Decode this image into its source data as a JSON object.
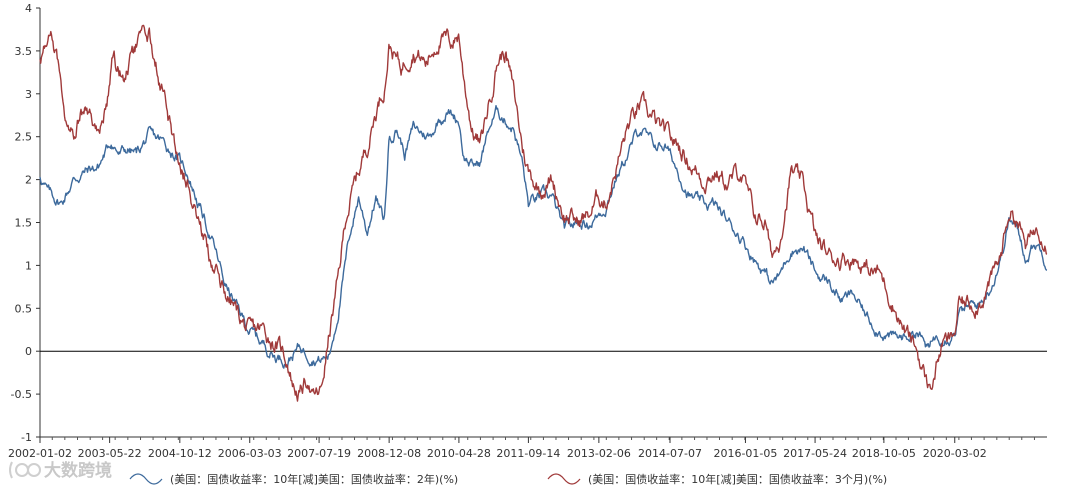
{
  "watermark": "大数跨境",
  "chart_data": {
    "type": "line",
    "title": "",
    "xlabel": "",
    "ylabel": "",
    "ylim": [
      -1,
      4
    ],
    "yticks": [
      -1,
      -0.5,
      0,
      0.5,
      1,
      1.5,
      2,
      2.5,
      3,
      3.5,
      4
    ],
    "ytick_labels": [
      "-1",
      "-0.5",
      "0",
      "0.5",
      "1",
      "1.5",
      "2",
      "2.5",
      "3",
      "3.5",
      "4"
    ],
    "xlim": [
      "2002-01-02",
      "2021-12-31"
    ],
    "xtick_labels": [
      "2002-01-02",
      "2003-05-22",
      "2004-10-12",
      "2006-03-03",
      "2007-07-19",
      "2008-12-08",
      "2010-04-28",
      "2011-09-14",
      "2013-02-06",
      "2014-07-07",
      "2016-01-05",
      "2017-05-24",
      "2018-10-05",
      "2020-03-02"
    ],
    "zero_line": true,
    "grid": false,
    "legend_position": "bottom",
    "series": [
      {
        "name": "(美国：国债收益率：10年[减]美国：国债收益率：2年)(%)",
        "color": "#3d6a9c",
        "x": [
          "2002-01-02",
          "2002-03-01",
          "2002-06-03",
          "2002-09-03",
          "2002-12-02",
          "2003-03-03",
          "2003-06-02",
          "2003-08-01",
          "2003-10-01",
          "2003-12-01",
          "2004-03-01",
          "2004-06-01",
          "2004-09-01",
          "2004-12-01",
          "2005-03-01",
          "2005-06-01",
          "2005-09-01",
          "2005-12-01",
          "2006-03-01",
          "2006-06-01",
          "2006-09-01",
          "2006-12-01",
          "2007-03-01",
          "2007-06-01",
          "2007-08-01",
          "2007-10-01",
          "2007-12-03",
          "2008-03-03",
          "2008-05-01",
          "2008-07-01",
          "2008-09-02",
          "2008-11-03",
          "2008-12-08",
          "2009-02-02",
          "2009-04-01",
          "2009-06-01",
          "2009-08-03",
          "2009-10-01",
          "2009-12-01",
          "2010-02-01",
          "2010-04-28",
          "2010-06-01",
          "2010-08-02",
          "2010-10-01",
          "2010-12-01",
          "2011-02-01",
          "2011-04-01",
          "2011-06-01",
          "2011-08-01",
          "2011-09-14",
          "2011-12-01",
          "2012-03-01",
          "2012-06-01",
          "2012-09-04",
          "2012-12-03",
          "2013-02-06",
          "2013-04-01",
          "2013-06-03",
          "2013-09-03",
          "2013-12-02",
          "2014-03-03",
          "2014-06-02",
          "2014-09-02",
          "2014-12-01",
          "2015-03-02",
          "2015-06-01",
          "2015-09-01",
          "2015-12-01",
          "2016-03-01",
          "2016-06-01",
          "2016-07-08",
          "2016-09-01",
          "2016-12-01",
          "2017-03-01",
          "2017-06-01",
          "2017-09-01",
          "2017-12-01",
          "2018-03-01",
          "2018-06-01",
          "2018-09-04",
          "2018-12-03",
          "2019-03-01",
          "2019-06-03",
          "2019-08-28",
          "2019-10-01",
          "2019-12-02",
          "2020-02-03",
          "2020-03-02",
          "2020-04-01",
          "2020-06-01",
          "2020-09-01",
          "2020-12-01",
          "2021-02-01",
          "2021-03-31",
          "2021-06-01",
          "2021-08-02",
          "2021-10-01",
          "2021-11-15",
          "2021-12-31"
        ],
        "values": [
          2.05,
          1.85,
          1.72,
          2.0,
          2.1,
          2.15,
          2.45,
          2.3,
          2.35,
          2.3,
          2.5,
          2.45,
          2.3,
          2.1,
          1.7,
          1.3,
          0.8,
          0.5,
          0.25,
          0.1,
          -0.05,
          -0.1,
          0.05,
          -0.05,
          -0.1,
          -0.05,
          0.45,
          1.4,
          1.8,
          1.4,
          1.8,
          1.5,
          2.5,
          2.6,
          2.3,
          2.6,
          2.55,
          2.5,
          2.7,
          2.8,
          2.7,
          2.3,
          2.15,
          2.2,
          2.6,
          2.8,
          2.7,
          2.6,
          2.2,
          1.7,
          1.8,
          1.8,
          1.4,
          1.5,
          1.5,
          1.6,
          1.7,
          2.0,
          2.3,
          2.6,
          2.4,
          2.4,
          2.1,
          1.8,
          1.7,
          1.7,
          1.5,
          1.35,
          1.1,
          0.9,
          0.8,
          0.85,
          1.2,
          1.2,
          0.9,
          0.8,
          0.6,
          0.65,
          0.4,
          0.25,
          0.15,
          0.15,
          0.25,
          0.0,
          0.15,
          0.2,
          0.2,
          0.25,
          0.45,
          0.5,
          0.55,
          0.8,
          1.1,
          1.55,
          1.4,
          1.1,
          1.25,
          1.2,
          1.05
        ]
      },
      {
        "name": "(美国：国债收益率：10年[减]美国：国债收益率：3个月)(%)",
        "color": "#a03a3a",
        "x": [
          "2002-01-02",
          "2002-02-01",
          "2002-04-01",
          "2002-06-03",
          "2002-07-01",
          "2002-09-03",
          "2002-11-01",
          "2003-01-02",
          "2003-03-03",
          "2003-05-01",
          "2003-06-16",
          "2003-07-15",
          "2003-09-02",
          "2003-11-03",
          "2004-01-02",
          "2004-03-01",
          "2004-06-01",
          "2004-09-01",
          "2004-12-01",
          "2005-03-01",
          "2005-06-01",
          "2005-09-01",
          "2005-12-01",
          "2006-03-01",
          "2006-06-01",
          "2006-09-01",
          "2006-12-01",
          "2007-01-16",
          "2007-03-01",
          "2007-05-01",
          "2007-06-01",
          "2007-08-01",
          "2007-10-01",
          "2007-12-03",
          "2008-02-01",
          "2008-05-01",
          "2008-07-01",
          "2008-09-02",
          "2008-11-03",
          "2008-12-08",
          "2009-03-02",
          "2009-06-01",
          "2009-09-01",
          "2009-12-01",
          "2010-03-01",
          "2010-04-28",
          "2010-06-01",
          "2010-08-02",
          "2010-10-01",
          "2011-02-01",
          "2011-04-01",
          "2011-06-01",
          "2011-08-01",
          "2011-09-14",
          "2011-12-01",
          "2012-03-01",
          "2012-06-01",
          "2012-09-04",
          "2012-12-03",
          "2013-02-06",
          "2013-04-01",
          "2013-06-03",
          "2013-09-03",
          "2013-12-02",
          "2014-03-03",
          "2014-06-02",
          "2014-09-02",
          "2014-12-01",
          "2015-03-02",
          "2015-06-01",
          "2015-09-01",
          "2015-12-01",
          "2016-03-01",
          "2016-06-01",
          "2016-07-08",
          "2016-09-01",
          "2016-12-01",
          "2017-03-01",
          "2017-06-01",
          "2017-09-01",
          "2017-12-01",
          "2018-03-01",
          "2018-06-01",
          "2018-09-04",
          "2018-12-03",
          "2019-03-01",
          "2019-06-03",
          "2019-08-28",
          "2019-10-01",
          "2019-12-02",
          "2020-02-03",
          "2020-03-02",
          "2020-04-01",
          "2020-06-01",
          "2020-09-01",
          "2020-12-01",
          "2021-02-01",
          "2021-03-31",
          "2021-06-01",
          "2021-08-02",
          "2021-10-01",
          "2021-11-15",
          "2021-12-31"
        ],
        "values": [
          3.4,
          3.5,
          3.6,
          3.2,
          2.8,
          2.65,
          2.8,
          2.75,
          2.5,
          2.9,
          3.5,
          3.3,
          3.2,
          3.4,
          3.6,
          3.7,
          3.1,
          2.4,
          2.0,
          1.55,
          1.0,
          0.7,
          0.45,
          0.2,
          0.25,
          0.1,
          -0.1,
          -0.4,
          -0.5,
          -0.3,
          -0.55,
          -0.5,
          0.2,
          0.8,
          1.6,
          2.1,
          2.4,
          2.8,
          3.1,
          3.6,
          3.3,
          3.55,
          3.35,
          3.65,
          3.6,
          3.7,
          3.2,
          2.6,
          2.4,
          3.4,
          3.5,
          3.0,
          2.4,
          2.1,
          1.9,
          2.0,
          1.6,
          1.5,
          1.6,
          1.8,
          1.75,
          2.1,
          2.6,
          2.85,
          2.7,
          2.5,
          2.4,
          2.2,
          2.0,
          2.1,
          1.95,
          2.1,
          1.6,
          1.5,
          1.1,
          1.25,
          2.1,
          1.9,
          1.3,
          1.1,
          1.1,
          1.1,
          0.95,
          0.9,
          0.6,
          0.25,
          0.0,
          -0.45,
          -0.3,
          0.1,
          0.1,
          0.2,
          0.55,
          0.55,
          0.6,
          0.85,
          1.1,
          1.65,
          1.55,
          1.2,
          1.4,
          1.45,
          1.3
        ]
      }
    ]
  }
}
